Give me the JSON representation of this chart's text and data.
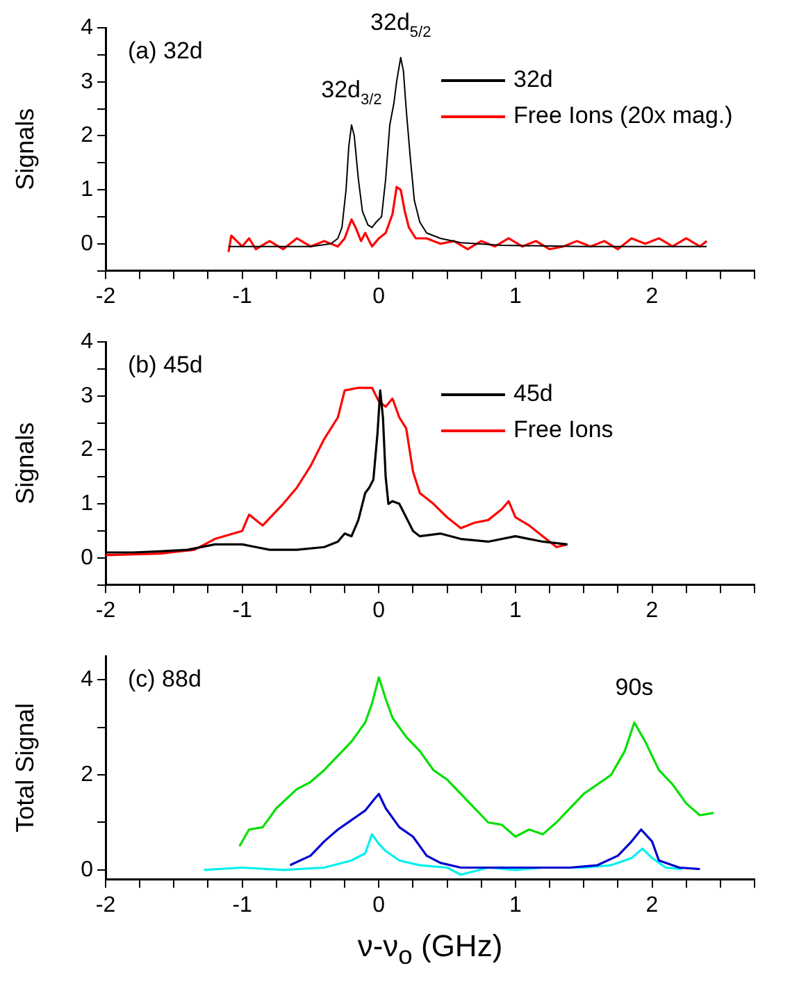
{
  "chart_data": [
    {
      "type": "line",
      "ylabel": "Signals",
      "legend": "top right",
      "marker": "none",
      "line_style": "solid",
      "grid": false,
      "xlim": [
        -2,
        2.75
      ],
      "xticks": [
        -2,
        {
          "value": -1.75,
          "label": null
        },
        {
          "value": -1.5,
          "label": null
        },
        {
          "value": -1.25,
          "label": null
        },
        -1,
        {
          "value": -0.75,
          "label": null
        },
        {
          "value": -0.5,
          "label": null
        },
        {
          "value": -0.25,
          "label": null
        },
        0,
        {
          "value": 0.25,
          "label": null
        },
        {
          "value": 0.5,
          "label": null
        },
        {
          "value": 0.75,
          "label": null
        },
        1,
        {
          "value": 1.25,
          "label": null
        },
        {
          "value": 1.5,
          "label": null
        },
        {
          "value": 1.75,
          "label": null
        },
        2,
        {
          "value": 2.25,
          "label": null
        },
        {
          "value": 2.5,
          "label": null
        },
        {
          "value": 2.75,
          "label": null
        }
      ],
      "ylim": [
        -0.5,
        4
      ],
      "yticks": [
        {
          "value": -0.5,
          "label": null
        },
        0,
        {
          "value": 0.5,
          "label": null
        },
        1,
        {
          "value": 1.5,
          "label": null
        },
        2,
        {
          "value": 2.5,
          "label": null
        },
        3,
        {
          "value": 3.5,
          "label": null
        },
        4
      ],
      "annotations": [
        "(a) 32d",
        {
          "text": "32d$_{3/2}$",
          "x": -0.2,
          "y": 2.2
        },
        {
          "text": "32d$_{5/2}$",
          "x": 0.16,
          "y": 3.45
        }
      ],
      "series": [
        {
          "name": "32d",
          "color": "#000000",
          "x": [
            -1.1,
            -0.8,
            -0.5,
            -0.35,
            -0.3,
            -0.27,
            -0.24,
            -0.22,
            -0.2,
            -0.18,
            -0.15,
            -0.12,
            -0.08,
            -0.05,
            -0.02,
            0.02,
            0.05,
            0.08,
            0.11,
            0.13,
            0.16,
            0.18,
            0.2,
            0.23,
            0.26,
            0.3,
            0.35,
            0.45,
            0.6,
            0.9,
            1.5,
            2.0,
            2.4
          ],
          "values": [
            -0.05,
            -0.05,
            -0.05,
            0.0,
            0.1,
            0.3,
            1.0,
            1.8,
            2.2,
            2.0,
            1.2,
            0.6,
            0.35,
            0.3,
            0.4,
            0.5,
            1.2,
            2.2,
            2.6,
            3.0,
            3.45,
            3.2,
            2.5,
            1.6,
            0.8,
            0.4,
            0.2,
            0.1,
            0.02,
            -0.03,
            -0.05,
            -0.05,
            -0.05
          ]
        },
        {
          "name": "Free Ions (20x mag.)",
          "color": "#ff0000",
          "x": [
            -1.1,
            -1.08,
            -1.0,
            -0.95,
            -0.9,
            -0.8,
            -0.7,
            -0.6,
            -0.5,
            -0.4,
            -0.3,
            -0.25,
            -0.2,
            -0.17,
            -0.13,
            -0.1,
            -0.05,
            0.0,
            0.05,
            0.1,
            0.13,
            0.16,
            0.19,
            0.22,
            0.27,
            0.35,
            0.45,
            0.55,
            0.65,
            0.75,
            0.85,
            0.95,
            1.05,
            1.15,
            1.25,
            1.35,
            1.45,
            1.55,
            1.65,
            1.75,
            1.85,
            1.95,
            2.05,
            2.15,
            2.25,
            2.35,
            2.4
          ],
          "values": [
            -0.15,
            0.15,
            -0.05,
            0.1,
            -0.1,
            0.05,
            -0.1,
            0.1,
            -0.05,
            0.05,
            -0.05,
            0.1,
            0.45,
            0.3,
            0.05,
            0.2,
            -0.05,
            0.1,
            0.2,
            0.55,
            1.05,
            1.0,
            0.6,
            0.3,
            0.1,
            0.1,
            0.0,
            0.05,
            -0.1,
            0.05,
            -0.05,
            0.1,
            -0.05,
            0.05,
            -0.1,
            -0.05,
            0.05,
            -0.05,
            0.05,
            -0.1,
            0.1,
            0.0,
            0.1,
            -0.05,
            0.1,
            -0.05,
            0.05
          ]
        }
      ]
    },
    {
      "type": "line",
      "ylabel": "Signals",
      "legend": "top right",
      "marker": "none",
      "line_style": "solid",
      "grid": false,
      "xlim": [
        -2,
        2.75
      ],
      "xticks": [
        -2,
        {
          "value": -1.75,
          "label": null
        },
        {
          "value": -1.5,
          "label": null
        },
        {
          "value": -1.25,
          "label": null
        },
        -1,
        {
          "value": -0.75,
          "label": null
        },
        {
          "value": -0.5,
          "label": null
        },
        {
          "value": -0.25,
          "label": null
        },
        0,
        {
          "value": 0.25,
          "label": null
        },
        {
          "value": 0.5,
          "label": null
        },
        {
          "value": 0.75,
          "label": null
        },
        1,
        {
          "value": 1.25,
          "label": null
        },
        {
          "value": 1.5,
          "label": null
        },
        {
          "value": 1.75,
          "label": null
        },
        2,
        {
          "value": 2.25,
          "label": null
        },
        {
          "value": 2.5,
          "label": null
        },
        {
          "value": 2.75,
          "label": null
        }
      ],
      "ylim": [
        -0.5,
        4
      ],
      "yticks": [
        {
          "value": -0.5,
          "label": null
        },
        0,
        {
          "value": 0.5,
          "label": null
        },
        1,
        {
          "value": 1.5,
          "label": null
        },
        2,
        {
          "value": 2.5,
          "label": null
        },
        3,
        {
          "value": 3.5,
          "label": null
        },
        4
      ],
      "annotations": [
        "(b) 45d"
      ],
      "series": [
        {
          "name": "45d",
          "color": "#000000",
          "x": [
            -2,
            -1.8,
            -1.6,
            -1.4,
            -1.2,
            -1.0,
            -0.9,
            -0.8,
            -0.6,
            -0.4,
            -0.3,
            -0.25,
            -0.2,
            -0.15,
            -0.1,
            -0.07,
            -0.04,
            -0.01,
            0.01,
            0.03,
            0.05,
            0.07,
            0.1,
            0.15,
            0.2,
            0.25,
            0.3,
            0.45,
            0.6,
            0.8,
            1.0,
            1.1,
            1.2,
            1.38
          ],
          "values": [
            0.1,
            0.1,
            0.12,
            0.15,
            0.25,
            0.25,
            0.2,
            0.15,
            0.15,
            0.2,
            0.3,
            0.45,
            0.4,
            0.7,
            1.2,
            1.3,
            1.45,
            2.3,
            3.1,
            2.6,
            1.5,
            1.0,
            1.05,
            1.0,
            0.75,
            0.5,
            0.4,
            0.45,
            0.35,
            0.3,
            0.4,
            0.35,
            0.3,
            0.25
          ]
        },
        {
          "name": "Free Ions",
          "color": "#ff0000",
          "x": [
            -2,
            -1.6,
            -1.35,
            -1.2,
            -1.0,
            -0.95,
            -0.85,
            -0.7,
            -0.6,
            -0.5,
            -0.4,
            -0.3,
            -0.25,
            -0.15,
            -0.05,
            0.0,
            0.05,
            0.1,
            0.15,
            0.2,
            0.25,
            0.3,
            0.4,
            0.5,
            0.6,
            0.7,
            0.8,
            0.9,
            0.95,
            1.0,
            1.1,
            1.2,
            1.3,
            1.38
          ],
          "values": [
            0.05,
            0.08,
            0.15,
            0.35,
            0.5,
            0.8,
            0.6,
            1.0,
            1.3,
            1.7,
            2.2,
            2.6,
            3.1,
            3.15,
            3.15,
            2.9,
            2.8,
            2.95,
            2.6,
            2.4,
            1.6,
            1.2,
            1.0,
            0.75,
            0.55,
            0.65,
            0.7,
            0.9,
            1.05,
            0.75,
            0.6,
            0.4,
            0.2,
            0.25
          ]
        }
      ]
    },
    {
      "type": "line",
      "ylabel": "Total Signal",
      "xlabel": "ν-ν$_{o}$ (GHz)",
      "marker": "none",
      "line_style": "solid",
      "grid": false,
      "xlim": [
        -2,
        2.75
      ],
      "xticks": [
        -2,
        {
          "value": -1.75,
          "label": null
        },
        {
          "value": -1.5,
          "label": null
        },
        {
          "value": -1.25,
          "label": null
        },
        -1,
        {
          "value": -0.75,
          "label": null
        },
        {
          "value": -0.5,
          "label": null
        },
        {
          "value": -0.25,
          "label": null
        },
        0,
        {
          "value": 0.25,
          "label": null
        },
        {
          "value": 0.5,
          "label": null
        },
        {
          "value": 0.75,
          "label": null
        },
        1,
        {
          "value": 1.25,
          "label": null
        },
        {
          "value": 1.5,
          "label": null
        },
        {
          "value": 1.75,
          "label": null
        },
        2,
        {
          "value": 2.25,
          "label": null
        },
        {
          "value": 2.5,
          "label": null
        },
        {
          "value": 2.75,
          "label": null
        }
      ],
      "ylim": [
        -0.2,
        4.5
      ],
      "yticks": [
        0,
        {
          "value": 1,
          "label": null
        },
        2,
        {
          "value": 3,
          "label": null
        },
        4
      ],
      "annotations": [
        "(c) 88d",
        {
          "text": "90s",
          "x": 1.87,
          "y": 3.1
        }
      ],
      "series": [
        {
          "color": "#00e000",
          "x": [
            -1.02,
            -0.95,
            -0.85,
            -0.75,
            -0.6,
            -0.5,
            -0.4,
            -0.3,
            -0.2,
            -0.1,
            -0.05,
            0.0,
            0.05,
            0.1,
            0.2,
            0.3,
            0.4,
            0.5,
            0.6,
            0.7,
            0.8,
            0.9,
            1.0,
            1.1,
            1.2,
            1.3,
            1.4,
            1.5,
            1.6,
            1.7,
            1.8,
            1.87,
            1.95,
            2.05,
            2.15,
            2.25,
            2.35,
            2.45
          ],
          "values": [
            0.5,
            0.85,
            0.9,
            1.3,
            1.7,
            1.85,
            2.1,
            2.4,
            2.7,
            3.1,
            3.5,
            4.05,
            3.6,
            3.2,
            2.8,
            2.5,
            2.1,
            1.9,
            1.6,
            1.3,
            1.0,
            0.95,
            0.7,
            0.85,
            0.75,
            1.0,
            1.3,
            1.6,
            1.8,
            2.0,
            2.5,
            3.1,
            2.7,
            2.1,
            1.8,
            1.4,
            1.15,
            1.2
          ]
        },
        {
          "color": "#0000d0",
          "x": [
            -0.65,
            -0.5,
            -0.4,
            -0.3,
            -0.2,
            -0.1,
            -0.03,
            0.0,
            0.05,
            0.15,
            0.25,
            0.35,
            0.45,
            0.6,
            1.0,
            1.4,
            1.6,
            1.75,
            1.85,
            1.92,
            2.0,
            2.05,
            2.2,
            2.35
          ],
          "values": [
            0.1,
            0.3,
            0.6,
            0.85,
            1.05,
            1.25,
            1.5,
            1.6,
            1.3,
            0.9,
            0.7,
            0.3,
            0.15,
            0.05,
            0.05,
            0.05,
            0.1,
            0.3,
            0.6,
            0.85,
            0.6,
            0.2,
            0.05,
            0.02
          ]
        },
        {
          "color": "#00f0f0",
          "x": [
            -1.28,
            -1.0,
            -0.7,
            -0.4,
            -0.2,
            -0.1,
            -0.05,
            0.0,
            0.05,
            0.15,
            0.3,
            0.5,
            0.6,
            0.8,
            1.0,
            1.2,
            1.5,
            1.7,
            1.85,
            1.93,
            2.0,
            2.1,
            2.22
          ],
          "values": [
            0.0,
            0.05,
            0.0,
            0.05,
            0.2,
            0.35,
            0.75,
            0.55,
            0.4,
            0.2,
            0.1,
            0.05,
            -0.1,
            0.05,
            0.0,
            0.05,
            0.05,
            0.1,
            0.25,
            0.45,
            0.25,
            0.05,
            0.02
          ]
        }
      ]
    }
  ]
}
